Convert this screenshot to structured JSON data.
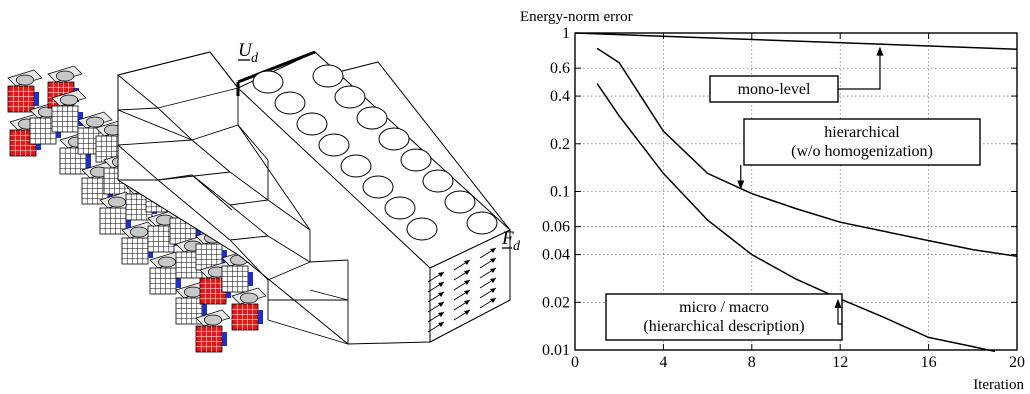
{
  "scene": {
    "top_label": "U",
    "top_subscript": "d",
    "right_label": "F",
    "right_subscript": "d",
    "colors": {
      "red": "#e01818",
      "blue": "#1f2fbf",
      "grey": "#c8c8c8"
    }
  },
  "chart_data": {
    "type": "line",
    "title": "",
    "ylabel": "Energy-norm error",
    "xlabel": "Iteration",
    "xlim": [
      0,
      20
    ],
    "ylim": [
      0.01,
      1
    ],
    "yscale": "log",
    "grid": true,
    "x_ticks": [
      0,
      4,
      8,
      12,
      16,
      20
    ],
    "y_ticks": [
      1,
      0.6,
      0.4,
      0.2,
      0.1,
      0.06,
      0.04,
      0.02,
      0.01
    ],
    "y_tick_labels": [
      "1",
      "0.6",
      "0.4",
      "0.2",
      "0.1",
      "0.06",
      "0.04",
      "0.02",
      "0.01"
    ],
    "series": [
      {
        "name": "mono-level",
        "x": [
          0,
          20
        ],
        "y": [
          1.0,
          0.79
        ]
      },
      {
        "name": "hierarchical (w/o homogenization)",
        "x": [
          1,
          2,
          4,
          6,
          8,
          10,
          12,
          14,
          16,
          18,
          20
        ],
        "y": [
          0.8,
          0.65,
          0.24,
          0.13,
          0.097,
          0.078,
          0.064,
          0.056,
          0.049,
          0.043,
          0.039
        ]
      },
      {
        "name": "micro / macro (hierarchical description)",
        "x": [
          1,
          2,
          4,
          6,
          8,
          10,
          12,
          14,
          16,
          18,
          19
        ],
        "y": [
          0.48,
          0.3,
          0.13,
          0.066,
          0.04,
          0.028,
          0.021,
          0.016,
          0.012,
          0.0105,
          0.0098
        ]
      }
    ],
    "annotations": [
      {
        "lines": [
          "mono-level"
        ],
        "target": [
          13.8,
          0.82
        ]
      },
      {
        "lines": [
          "hierarchical",
          "(w/o homogenization)"
        ],
        "target": [
          7.5,
          0.103
        ]
      },
      {
        "lines": [
          "micro / macro",
          "(hierarchical description)"
        ],
        "target": [
          11.9,
          0.021
        ]
      }
    ]
  }
}
